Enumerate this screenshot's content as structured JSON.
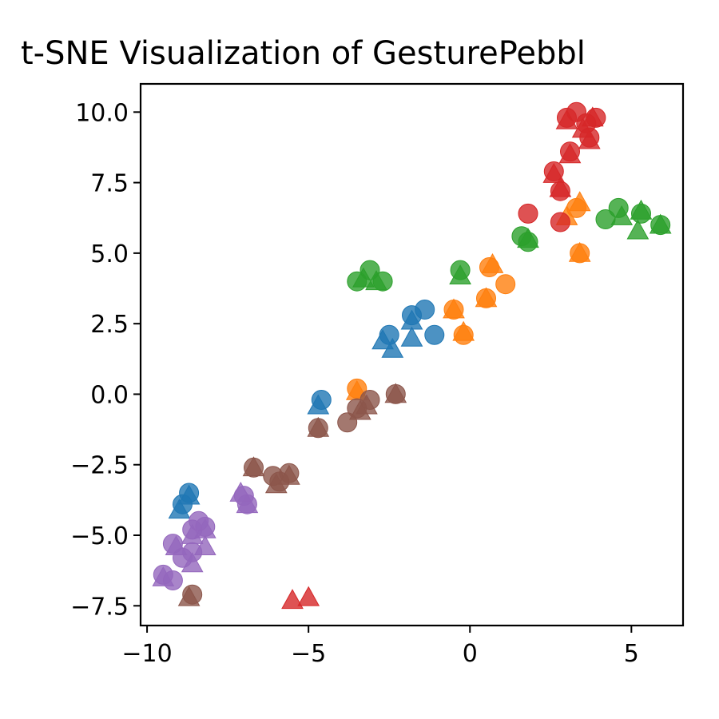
{
  "chart_data": {
    "type": "scatter",
    "title": "t-SNE Visualization of GesturePebbl",
    "xlabel": "",
    "ylabel": "",
    "xlim": [
      -10.2,
      6.6
    ],
    "ylim": [
      -8.2,
      11.0
    ],
    "x_ticks": [
      {
        "value": -10,
        "label": "−10"
      },
      {
        "value": -5,
        "label": "−5"
      },
      {
        "value": 0,
        "label": "0"
      },
      {
        "value": 5,
        "label": "5"
      }
    ],
    "y_ticks": [
      {
        "value": 10.0,
        "label": "10.0"
      },
      {
        "value": 7.5,
        "label": "7.5"
      },
      {
        "value": 5.0,
        "label": "5.0"
      },
      {
        "value": 2.5,
        "label": "2.5"
      },
      {
        "value": 0.0,
        "label": "0.0"
      },
      {
        "value": -2.5,
        "label": "−2.5"
      },
      {
        "value": -5.0,
        "label": "−5.0"
      },
      {
        "value": -7.5,
        "label": "−7.5"
      }
    ],
    "grid": false,
    "legend": "none",
    "marker_types": [
      "circle",
      "triangle"
    ],
    "series": [
      {
        "color": "#1f77b4",
        "circles": [
          [
            -8.7,
            -3.5
          ],
          [
            -8.9,
            -3.9
          ],
          [
            -4.6,
            -0.2
          ],
          [
            -2.5,
            2.1
          ],
          [
            -1.8,
            2.8
          ],
          [
            -1.4,
            3.0
          ],
          [
            -1.1,
            2.1
          ]
        ],
        "triangles": [
          [
            -9.0,
            -4.1
          ],
          [
            -8.7,
            -3.6
          ],
          [
            -4.7,
            -0.4
          ],
          [
            -2.7,
            1.9
          ],
          [
            -2.4,
            1.6
          ],
          [
            -1.8,
            2.0
          ],
          [
            -1.8,
            2.6
          ]
        ]
      },
      {
        "color": "#ff7f0e",
        "circles": [
          [
            -3.5,
            0.2
          ],
          [
            -0.5,
            3.0
          ],
          [
            -0.2,
            2.1
          ],
          [
            0.5,
            3.4
          ],
          [
            0.6,
            4.5
          ],
          [
            1.1,
            3.9
          ],
          [
            3.3,
            6.6
          ],
          [
            3.4,
            5.0
          ]
        ],
        "triangles": [
          [
            -3.5,
            0.1
          ],
          [
            -0.5,
            3.0
          ],
          [
            -0.2,
            2.2
          ],
          [
            0.5,
            3.4
          ],
          [
            0.7,
            4.6
          ],
          [
            3.0,
            6.3
          ],
          [
            3.4,
            6.8
          ],
          [
            3.4,
            5.0
          ]
        ]
      },
      {
        "color": "#2ca02c",
        "circles": [
          [
            -3.5,
            4.0
          ],
          [
            -3.1,
            4.4
          ],
          [
            -2.7,
            4.0
          ],
          [
            -0.3,
            4.4
          ],
          [
            1.6,
            5.6
          ],
          [
            1.8,
            5.4
          ],
          [
            4.2,
            6.2
          ],
          [
            4.6,
            6.6
          ],
          [
            5.3,
            6.4
          ],
          [
            5.9,
            6.0
          ]
        ],
        "triangles": [
          [
            -3.3,
            4.1
          ],
          [
            -2.9,
            4.0
          ],
          [
            -0.3,
            4.2
          ],
          [
            1.8,
            5.5
          ],
          [
            4.7,
            6.3
          ],
          [
            5.2,
            5.8
          ],
          [
            5.3,
            6.5
          ],
          [
            5.9,
            6.0
          ]
        ]
      },
      {
        "color": "#d62728",
        "circles": [
          [
            1.8,
            6.4
          ],
          [
            2.8,
            6.1
          ],
          [
            2.8,
            7.2
          ],
          [
            2.6,
            7.9
          ],
          [
            3.0,
            9.8
          ],
          [
            3.3,
            10.0
          ],
          [
            3.6,
            9.6
          ],
          [
            3.9,
            9.8
          ],
          [
            3.7,
            9.1
          ],
          [
            3.1,
            8.6
          ]
        ],
        "triangles": [
          [
            2.8,
            7.3
          ],
          [
            2.6,
            7.8
          ],
          [
            3.0,
            9.7
          ],
          [
            3.1,
            8.5
          ],
          [
            3.5,
            9.4
          ],
          [
            3.8,
            9.8
          ],
          [
            3.7,
            9.0
          ],
          [
            -5.5,
            -7.3
          ],
          [
            -5.0,
            -7.2
          ]
        ]
      },
      {
        "color": "#9467bd",
        "circles": [
          [
            -9.5,
            -6.4
          ],
          [
            -9.2,
            -6.6
          ],
          [
            -9.2,
            -5.3
          ],
          [
            -8.9,
            -5.8
          ],
          [
            -8.6,
            -5.6
          ],
          [
            -8.6,
            -4.8
          ],
          [
            -8.4,
            -4.5
          ],
          [
            -8.2,
            -4.7
          ],
          [
            -7.0,
            -3.6
          ],
          [
            -6.9,
            -3.9
          ]
        ],
        "triangles": [
          [
            -9.5,
            -6.5
          ],
          [
            -9.1,
            -5.4
          ],
          [
            -8.6,
            -6.0
          ],
          [
            -8.6,
            -5.0
          ],
          [
            -8.2,
            -5.4
          ],
          [
            -8.2,
            -4.8
          ],
          [
            -7.1,
            -3.5
          ],
          [
            -6.9,
            -3.9
          ]
        ]
      },
      {
        "color": "#8c564b",
        "circles": [
          [
            -8.6,
            -7.1
          ],
          [
            -6.7,
            -2.6
          ],
          [
            -6.1,
            -2.9
          ],
          [
            -5.9,
            -3.1
          ],
          [
            -5.6,
            -2.8
          ],
          [
            -4.7,
            -1.2
          ],
          [
            -3.8,
            -1.0
          ],
          [
            -3.5,
            -0.5
          ],
          [
            -3.1,
            -0.2
          ],
          [
            -2.3,
            0.0
          ]
        ],
        "triangles": [
          [
            -8.7,
            -7.2
          ],
          [
            -6.7,
            -2.6
          ],
          [
            -6.0,
            -3.2
          ],
          [
            -5.6,
            -2.9
          ],
          [
            -4.7,
            -1.2
          ],
          [
            -3.4,
            -0.6
          ],
          [
            -3.2,
            -0.4
          ],
          [
            -2.3,
            0.0
          ]
        ]
      }
    ]
  }
}
